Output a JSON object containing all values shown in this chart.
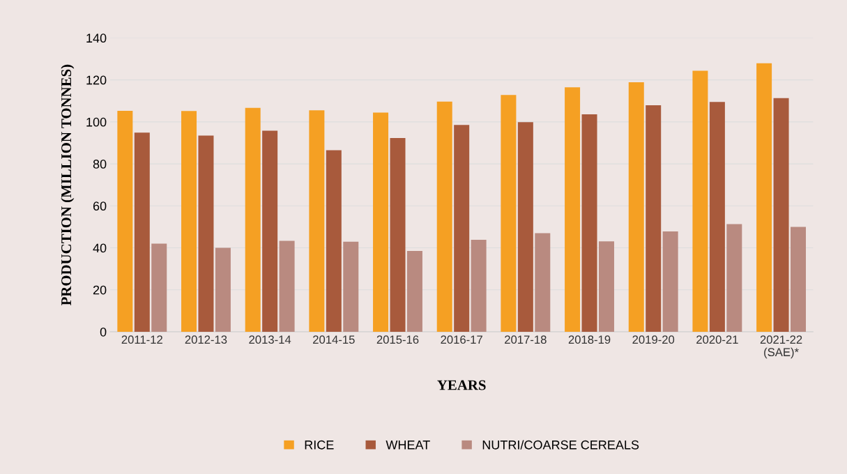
{
  "chart_data": {
    "type": "bar",
    "xlabel": "YEARS",
    "ylabel": "PRODUCTION (MILLION TONNES)",
    "categories": [
      "2011-12",
      "2012-13",
      "2013-14",
      "2014-15",
      "2015-16",
      "2016-17",
      "2017-18",
      "2018-19",
      "2019-20",
      "2020-21",
      "2021-22\n(SAE)*"
    ],
    "series": [
      {
        "name": "RICE",
        "color": "#f5a023",
        "values": [
          105.3,
          105.2,
          106.7,
          105.5,
          104.4,
          109.7,
          112.8,
          116.5,
          118.9,
          124.4,
          127.9
        ]
      },
      {
        "name": "WHEAT",
        "color": "#a85a3c",
        "values": [
          94.9,
          93.5,
          95.8,
          86.5,
          92.3,
          98.5,
          99.9,
          103.6,
          107.9,
          109.5,
          111.3
        ]
      },
      {
        "name": "NUTRI/COARSE CEREALS",
        "color": "#b98a80",
        "values": [
          42.0,
          40.0,
          43.3,
          42.9,
          38.5,
          43.8,
          47.0,
          43.1,
          47.8,
          51.3,
          50.0
        ]
      }
    ],
    "ylim": [
      0,
      140
    ],
    "yticks": [
      0,
      20,
      40,
      60,
      80,
      100,
      120,
      140
    ],
    "grid": "y",
    "legend": "bottom"
  }
}
